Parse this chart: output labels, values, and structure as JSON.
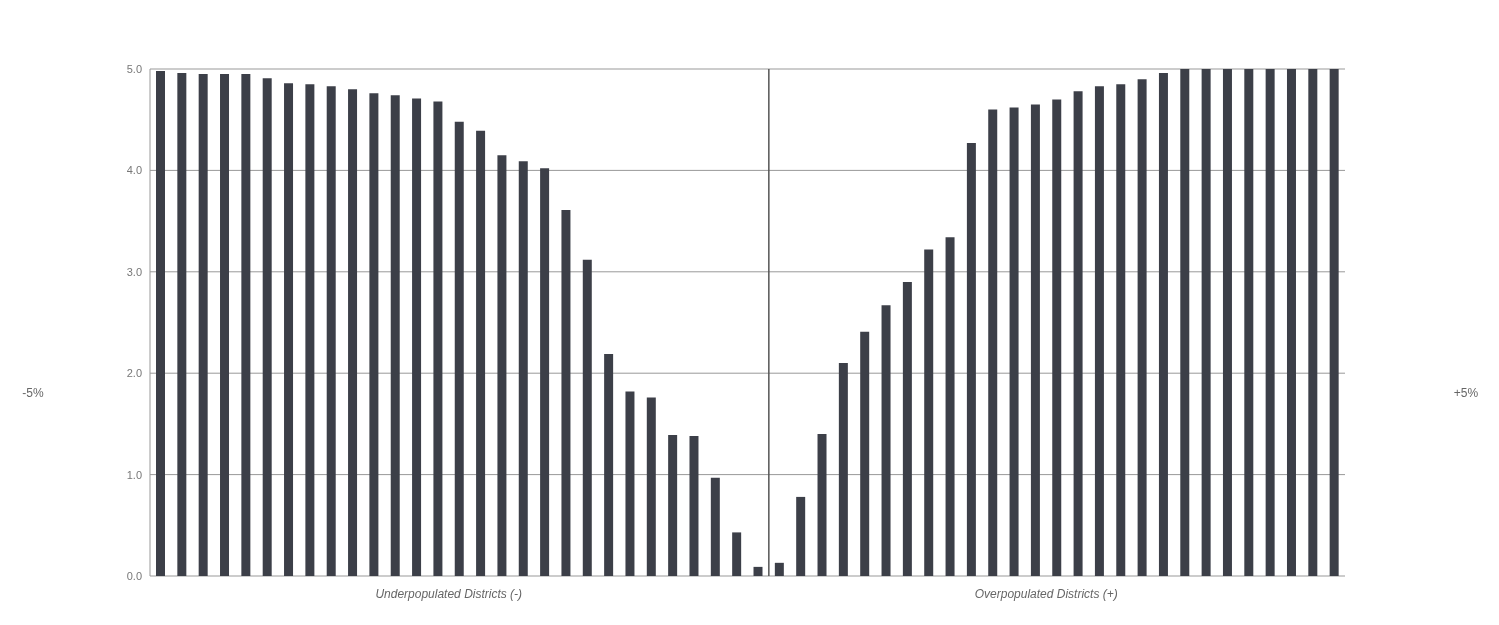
{
  "chart_data": {
    "type": "bar",
    "categories": [
      null,
      null,
      null,
      null,
      null,
      null,
      null,
      null,
      null,
      null,
      null,
      null,
      null,
      null,
      null,
      null,
      null,
      null,
      null,
      null,
      null,
      null,
      null,
      null,
      null,
      null,
      null,
      null,
      null,
      null,
      null,
      null,
      null,
      null,
      null,
      null,
      null,
      null,
      null,
      null,
      null,
      null,
      null,
      null,
      null,
      null,
      null,
      null,
      null,
      null,
      null,
      null,
      null,
      null,
      null,
      null
    ],
    "values": [
      4.98,
      4.96,
      4.95,
      4.95,
      4.95,
      4.91,
      4.86,
      4.85,
      4.83,
      4.8,
      4.76,
      4.74,
      4.71,
      4.68,
      4.48,
      4.39,
      4.15,
      4.09,
      4.02,
      3.61,
      3.12,
      2.19,
      1.82,
      1.76,
      1.39,
      1.38,
      0.97,
      0.43,
      0.09,
      0.13,
      0.78,
      1.4,
      2.1,
      2.41,
      2.67,
      2.9,
      3.22,
      3.34,
      4.27,
      4.6,
      4.62,
      4.65,
      4.7,
      4.78,
      4.83,
      4.85,
      4.9,
      4.96,
      5,
      5,
      5,
      5,
      5,
      5,
      5,
      5
    ],
    "color": "#3c3f48",
    "ylim": [
      0,
      5
    ],
    "yticks": [
      {
        "value": 0,
        "label": "0.0"
      },
      {
        "value": 1,
        "label": "1.0"
      },
      {
        "value": 2,
        "label": "2.0"
      },
      {
        "value": 3,
        "label": "3.0"
      },
      {
        "value": 4,
        "label": "4.0"
      },
      {
        "value": 5,
        "label": "5.0"
      }
    ],
    "grid": "y",
    "tick_labels": "y",
    "annotations": [
      "-5%",
      "+5%",
      "Underpopulated Districts (-)",
      "Overpopulated Districts (+)"
    ]
  }
}
